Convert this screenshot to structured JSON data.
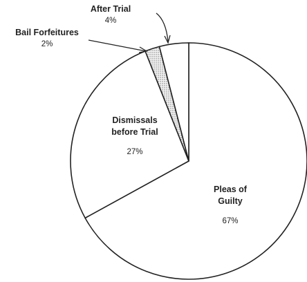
{
  "chart_data": {
    "type": "pie",
    "categories": [
      "Pleas of Guilty",
      "Dismissals before Trial",
      "Bail Forfeitures",
      "After Trial"
    ],
    "values": [
      67,
      27,
      2,
      4
    ],
    "value_labels": [
      "67%",
      "27%",
      "2%",
      "4%"
    ],
    "colors": [
      "#ffffff",
      "#ffffff",
      "#d8d8d8",
      "#ffffff"
    ]
  }
}
